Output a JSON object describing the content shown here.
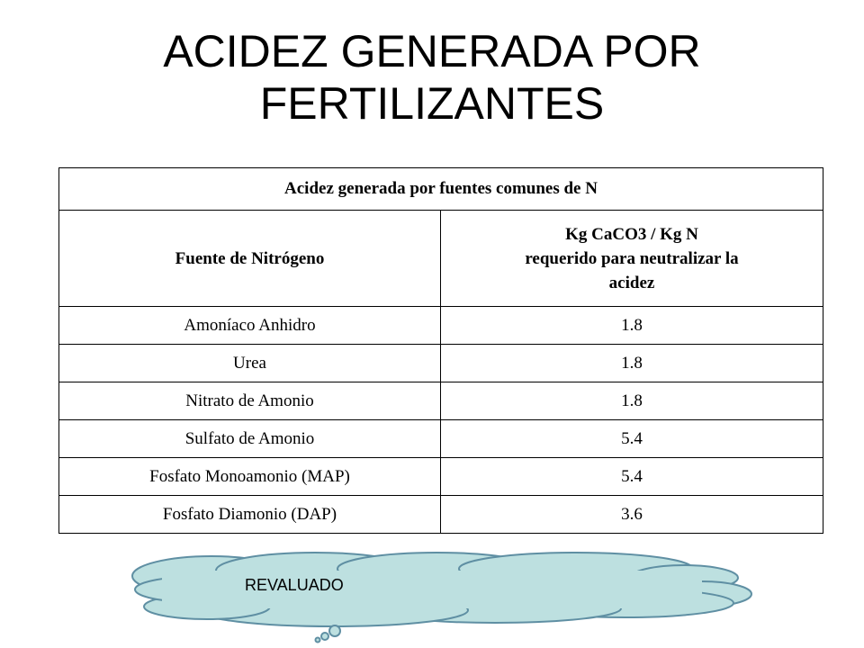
{
  "slide": {
    "title_line1": "ACIDEZ GENERADA POR",
    "title_line2": "FERTILIZANTES"
  },
  "table": {
    "caption": "Acidez generada por fuentes comunes de N",
    "headers": {
      "source": "Fuente de Nitrógeno",
      "value_line1": "Kg CaCO3 / Kg N",
      "value_line2": "requerido para neutralizar la",
      "value_line3": "acidez"
    },
    "rows": [
      {
        "source": "Amoníaco Anhidro",
        "value": "1.8"
      },
      {
        "source": "Urea",
        "value": "1.8"
      },
      {
        "source": "Nitrato de Amonio",
        "value": "1.8"
      },
      {
        "source": "Sulfato de Amonio",
        "value": "5.4"
      },
      {
        "source": "Fosfato Monoamonio (MAP)",
        "value": "5.4"
      },
      {
        "source": "Fosfato Diamonio (DAP)",
        "value": "3.6"
      }
    ]
  },
  "callout": {
    "text": "REVALUADO",
    "fill_color": "#bde0e0",
    "stroke_color": "#5f8fa3"
  }
}
